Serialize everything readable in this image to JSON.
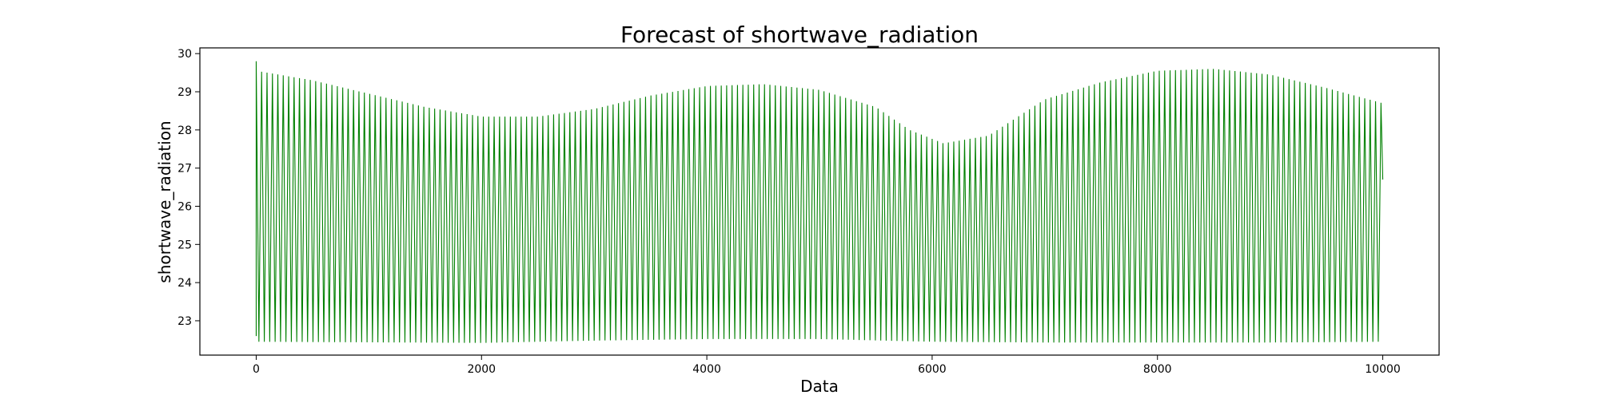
{
  "chart_data": {
    "type": "line",
    "title": "Forecast of shortwave_radiation",
    "xlabel": "Data",
    "ylabel": "shortwave_radiation",
    "xlim": [
      -500,
      10500
    ],
    "ylim": [
      22.1,
      30.15
    ],
    "x_ticks": [
      0,
      2000,
      4000,
      6000,
      8000,
      10000
    ],
    "y_ticks": [
      23,
      24,
      25,
      26,
      27,
      28,
      29,
      30
    ],
    "grid": false,
    "legend": "none",
    "series": [
      {
        "color": "#008000",
        "x_start": 0,
        "x_end": 10000,
        "cycle_period": 48,
        "start_values": [
          22.6,
          29.8
        ],
        "end_value": 26.7,
        "upper_envelope": [
          [
            0,
            29.55
          ],
          [
            500,
            29.3
          ],
          [
            1000,
            28.95
          ],
          [
            1500,
            28.6
          ],
          [
            2000,
            28.35
          ],
          [
            2500,
            28.35
          ],
          [
            3000,
            28.55
          ],
          [
            3500,
            28.9
          ],
          [
            4000,
            29.15
          ],
          [
            4500,
            29.2
          ],
          [
            5000,
            29.05
          ],
          [
            5500,
            28.6
          ],
          [
            5800,
            28.0
          ],
          [
            6100,
            27.65
          ],
          [
            6500,
            27.85
          ],
          [
            7000,
            28.8
          ],
          [
            7500,
            29.25
          ],
          [
            8000,
            29.55
          ],
          [
            8500,
            29.6
          ],
          [
            9000,
            29.45
          ],
          [
            9500,
            29.1
          ],
          [
            10000,
            28.7
          ]
        ],
        "lower_envelope": [
          [
            0,
            22.45
          ],
          [
            2000,
            22.42
          ],
          [
            3000,
            22.48
          ],
          [
            4000,
            22.52
          ],
          [
            5000,
            22.52
          ],
          [
            6000,
            22.45
          ],
          [
            7000,
            22.43
          ],
          [
            8000,
            22.43
          ],
          [
            9000,
            22.43
          ],
          [
            10000,
            22.45
          ]
        ]
      }
    ]
  }
}
